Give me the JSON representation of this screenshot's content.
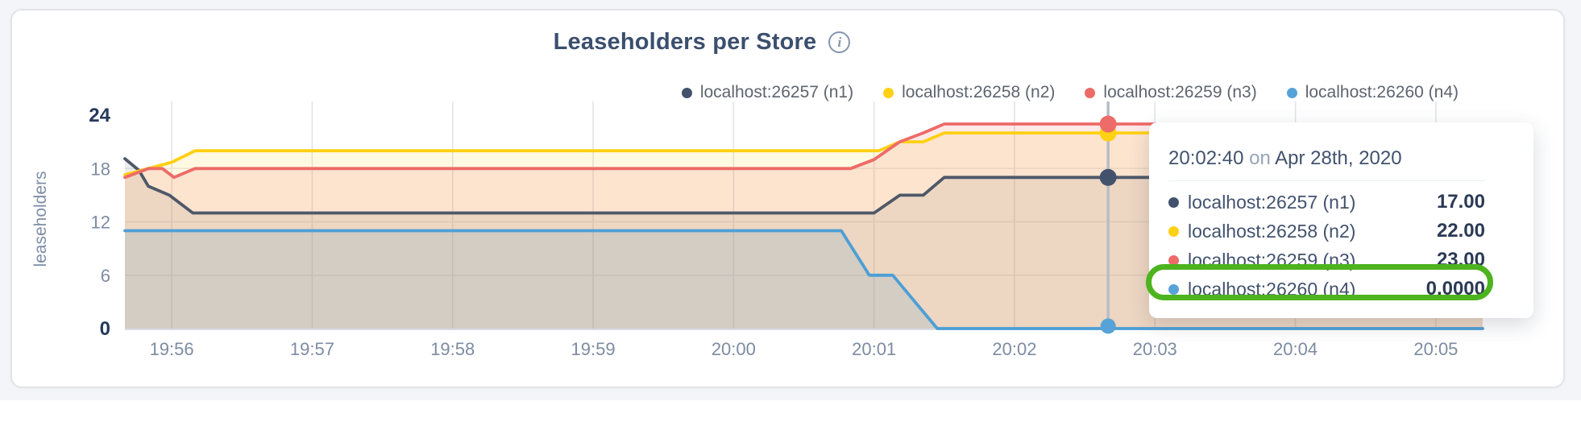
{
  "panel": {
    "title": "Leaseholders per Store",
    "info_icon": "i"
  },
  "legend": {
    "items": [
      {
        "label": "localhost:26257 (n1)",
        "color": "#42526d"
      },
      {
        "label": "localhost:26258 (n2)",
        "color": "#ffd013"
      },
      {
        "label": "localhost:26259 (n3)",
        "color": "#ed6b68"
      },
      {
        "label": "localhost:26260 (n4)",
        "color": "#57a3d8"
      }
    ]
  },
  "chart_data": {
    "type": "area",
    "title": "Leaseholders per Store",
    "xlabel": "",
    "ylabel": "leaseholders",
    "ylim": [
      0,
      24
    ],
    "y_ticks": [
      0,
      6,
      12,
      18,
      24
    ],
    "x_ticks": [
      "19:56",
      "19:57",
      "19:58",
      "19:59",
      "20:00",
      "20:01",
      "20:02",
      "20:03",
      "20:04",
      "20:05"
    ],
    "x_tick_seconds": [
      20,
      80,
      140,
      200,
      260,
      320,
      380,
      440,
      500,
      560
    ],
    "x_domain_seconds": [
      0,
      580
    ],
    "x_domain_labels": [
      "19:55:40",
      "20:05:20"
    ],
    "grid": true,
    "legend_position": "top-right",
    "series": [
      {
        "name": "localhost:26257 (n1)",
        "color": "#4e5868",
        "fill_opacity": 0.11,
        "points": [
          [
            0,
            19.1
          ],
          [
            6,
            17.8
          ],
          [
            10,
            16.0
          ],
          [
            19,
            15.0
          ],
          [
            29,
            13
          ],
          [
            320,
            13
          ],
          [
            331,
            15
          ],
          [
            341,
            15
          ],
          [
            350,
            17
          ],
          [
            580,
            17
          ]
        ]
      },
      {
        "name": "localhost:26258 (n2)",
        "color": "#ffd013",
        "fill_opacity": 0.12,
        "points": [
          [
            0,
            17.3
          ],
          [
            20,
            18.7
          ],
          [
            30,
            20
          ],
          [
            322,
            20
          ],
          [
            331,
            21
          ],
          [
            341,
            21
          ],
          [
            350,
            22
          ],
          [
            580,
            22
          ]
        ]
      },
      {
        "name": "localhost:26259 (n3)",
        "color": "#ed6b68",
        "fill_opacity": 0.15,
        "points": [
          [
            0,
            17.0
          ],
          [
            10,
            18
          ],
          [
            16,
            18
          ],
          [
            21,
            17
          ],
          [
            30,
            18
          ],
          [
            310,
            18
          ],
          [
            320,
            19
          ],
          [
            331,
            21
          ],
          [
            341,
            22
          ],
          [
            350,
            23
          ],
          [
            580,
            23
          ]
        ]
      },
      {
        "name": "localhost:26260 (n4)",
        "color": "#4d9fd6",
        "fill_opacity": 0.16,
        "points": [
          [
            0,
            11
          ],
          [
            306,
            11
          ],
          [
            318,
            6
          ],
          [
            328,
            6
          ],
          [
            347,
            0
          ],
          [
            580,
            0
          ]
        ]
      }
    ],
    "crosshair": {
      "t": 420,
      "time_label": "20:02:40",
      "color": "#b7bdc7"
    }
  },
  "tooltip": {
    "time": "20:02:40",
    "conj": "on",
    "date": "Apr 28th, 2020",
    "rows": [
      {
        "label": "localhost:26257 (n1)",
        "value": "17.00",
        "color": "#42526d",
        "highlighted": false
      },
      {
        "label": "localhost:26258 (n2)",
        "value": "22.00",
        "color": "#ffd013",
        "highlighted": false
      },
      {
        "label": "localhost:26259 (n3)",
        "value": "23.00",
        "color": "#ed6b68",
        "highlighted": false
      },
      {
        "label": "localhost:26260 (n4)",
        "value": "0.0000",
        "color": "#57a3d8",
        "highlighted": true
      }
    ]
  },
  "annotation": {
    "shape": "ring",
    "color": "#4db31e"
  }
}
